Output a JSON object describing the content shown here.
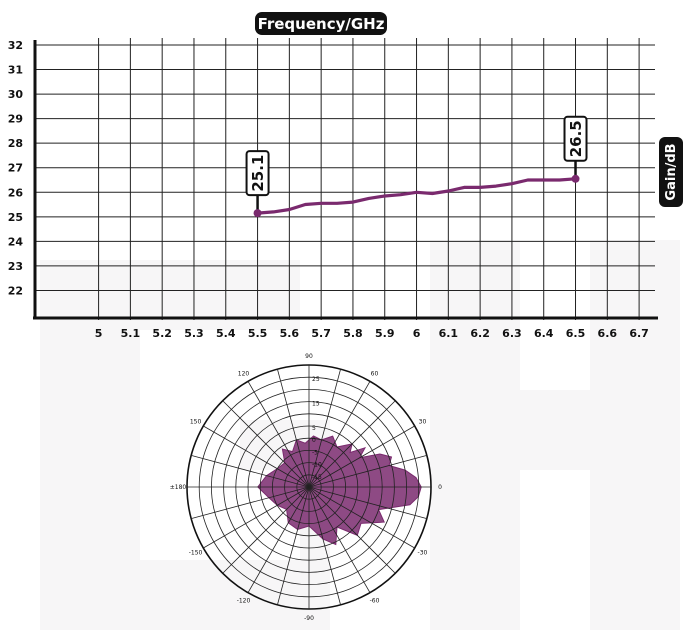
{
  "chart_data": [
    {
      "type": "line",
      "xlabel": "Frequency/GHz",
      "ylabel": "Gain/dB",
      "xlim": [
        4.8,
        6.75
      ],
      "ylim": [
        21,
        32
      ],
      "x_ticks": [
        "5",
        "5.1",
        "5.2",
        "5.3",
        "5.4",
        "5.5",
        "5.6",
        "5.7",
        "5.8",
        "5.9",
        "6",
        "6.1",
        "6.2",
        "6.3",
        "6.4",
        "6.5",
        "6.6",
        "6.7"
      ],
      "y_ticks": [
        "22",
        "23",
        "24",
        "25",
        "26",
        "27",
        "28",
        "29",
        "30",
        "31",
        "32"
      ],
      "grid": true,
      "series": [
        {
          "x": [
            5.5,
            5.55,
            5.6,
            5.65,
            5.7,
            5.75,
            5.8,
            5.85,
            5.9,
            5.95,
            6.0,
            6.05,
            6.1,
            6.15,
            6.2,
            6.25,
            6.3,
            6.35,
            6.4,
            6.45,
            6.5
          ],
          "y": [
            25.15,
            25.2,
            25.3,
            25.5,
            25.55,
            25.55,
            25.6,
            25.75,
            25.85,
            25.9,
            26.0,
            25.95,
            26.05,
            26.2,
            26.2,
            26.25,
            26.35,
            26.5,
            26.5,
            26.5,
            26.55
          ],
          "color": "#7a2a6e"
        }
      ],
      "annotations": [
        {
          "x": 5.5,
          "y": 25.15,
          "label": "25.1"
        },
        {
          "x": 6.5,
          "y": 26.55,
          "label": "26.5"
        }
      ]
    },
    {
      "type": "polar",
      "r_ticks": [
        "-15",
        "-10",
        "-5",
        "0",
        "5",
        "15",
        "25"
      ],
      "r_values": [
        -20,
        -15,
        -10,
        -5,
        0,
        5,
        10,
        15,
        20,
        25
      ],
      "angle_ticks": [
        {
          "deg": 0,
          "label": "0"
        },
        {
          "deg": 30,
          "label": "30"
        },
        {
          "deg": 60,
          "label": "60"
        },
        {
          "deg": 90,
          "label": "90"
        },
        {
          "deg": 120,
          "label": "120"
        },
        {
          "deg": 150,
          "label": "150"
        },
        {
          "deg": 180,
          "label": "±180"
        },
        {
          "deg": -150,
          "label": "-150"
        },
        {
          "deg": -120,
          "label": "-120"
        },
        {
          "deg": -90,
          "label": "-90"
        },
        {
          "deg": -60,
          "label": "-60"
        },
        {
          "deg": -30,
          "label": "-30"
        }
      ],
      "pattern_color": "#7a2a6e",
      "pattern": [
        {
          "deg": 0,
          "r": 26
        },
        {
          "deg": 5,
          "r": 24
        },
        {
          "deg": 10,
          "r": 20
        },
        {
          "deg": 15,
          "r": 14
        },
        {
          "deg": 20,
          "r": 16
        },
        {
          "deg": 25,
          "r": 12
        },
        {
          "deg": 30,
          "r": 4
        },
        {
          "deg": 35,
          "r": 8
        },
        {
          "deg": 40,
          "r": 2
        },
        {
          "deg": 45,
          "r": 5
        },
        {
          "deg": 55,
          "r": 0
        },
        {
          "deg": 65,
          "r": 3
        },
        {
          "deg": 75,
          "r": 0
        },
        {
          "deg": 85,
          "r": 1
        },
        {
          "deg": 95,
          "r": -2
        },
        {
          "deg": 105,
          "r": 0
        },
        {
          "deg": 115,
          "r": -4
        },
        {
          "deg": 125,
          "r": -1
        },
        {
          "deg": 135,
          "r": -6
        },
        {
          "deg": 150,
          "r": -5
        },
        {
          "deg": 165,
          "r": -2
        },
        {
          "deg": 180,
          "r": 1
        },
        {
          "deg": 195,
          "r": -3
        },
        {
          "deg": 210,
          "r": -5
        },
        {
          "deg": 225,
          "r": -7
        },
        {
          "deg": 240,
          "r": -3
        },
        {
          "deg": 255,
          "r": -2
        },
        {
          "deg": 270,
          "r": -4
        },
        {
          "deg": 285,
          "r": 2
        },
        {
          "deg": 295,
          "r": 6
        },
        {
          "deg": 305,
          "r": 0
        },
        {
          "deg": 315,
          "r": 8
        },
        {
          "deg": 325,
          "r": 6
        },
        {
          "deg": 335,
          "r": 14
        },
        {
          "deg": 342,
          "r": 10
        },
        {
          "deg": 350,
          "r": 22
        },
        {
          "deg": 355,
          "r": 25
        }
      ]
    }
  ]
}
